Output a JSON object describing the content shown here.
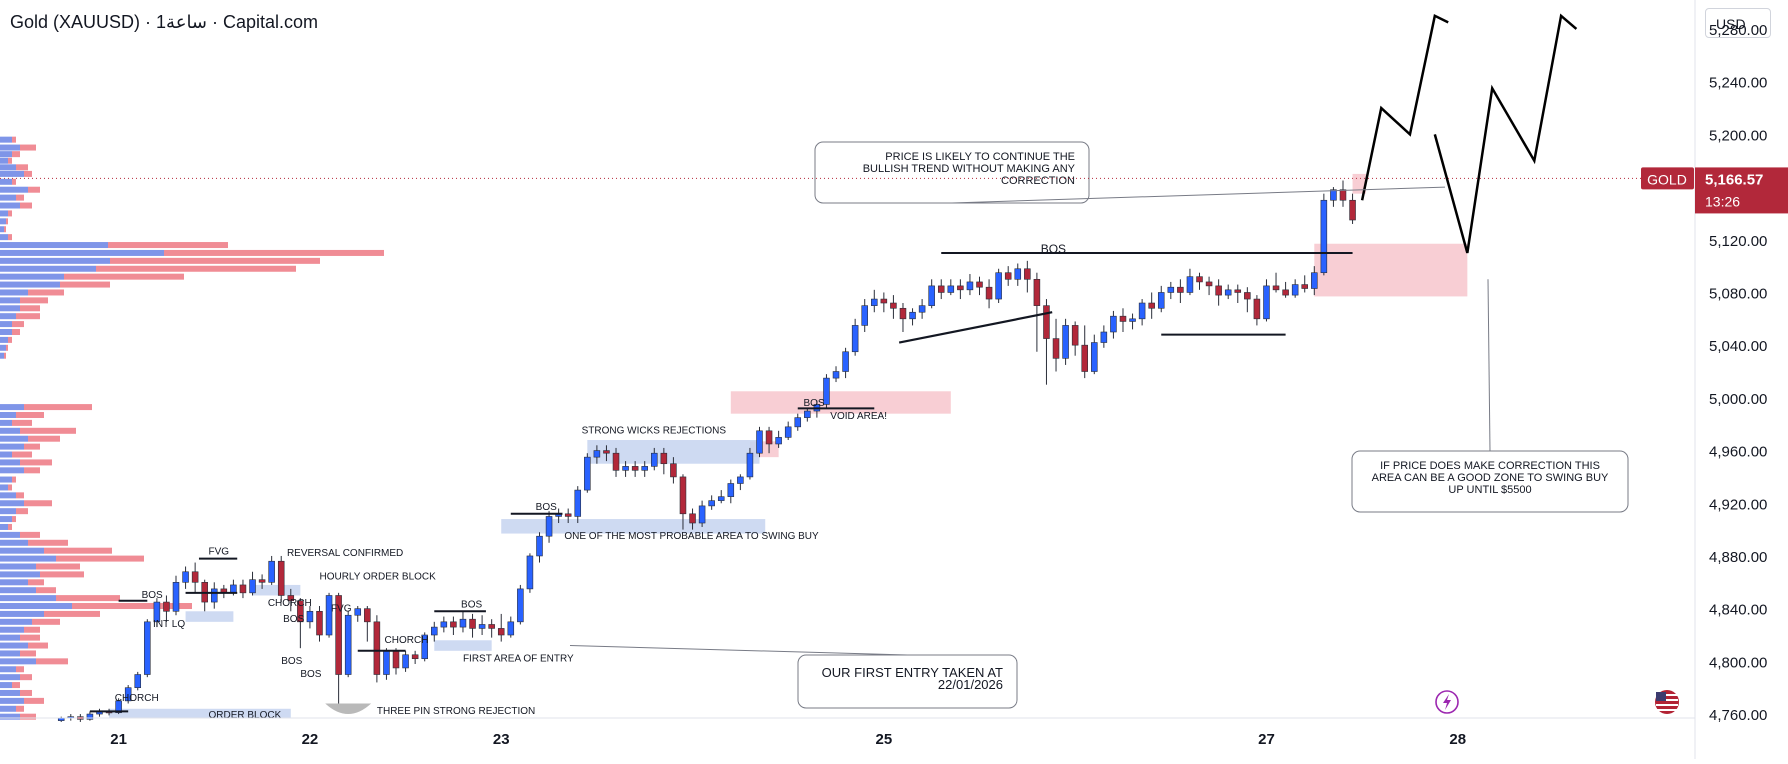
{
  "header": {
    "title": "Gold (XAUUSD) · 1ساعة · Capital.com"
  },
  "currency": "USD",
  "price_tag": {
    "symbol": "GOLD",
    "price": "5,166.57",
    "countdown": "13:26",
    "color": "#b2283a"
  },
  "colors": {
    "up": "#2962ff",
    "down": "#b2283a",
    "volume_up": "#7f95e8",
    "volume_down": "#f08c95",
    "zone_red": "#f7c6cc",
    "zone_blue": "#c5d3f0",
    "zone_grey": "#b9b9b9"
  },
  "icons": [
    "lightning-icon",
    "us-flag-icon"
  ],
  "chart_data": {
    "type": "candlestick",
    "title": "",
    "y_ticks": [
      5280,
      5240,
      5200,
      5120,
      5080,
      5040,
      5000,
      4960,
      4920,
      4880,
      4840,
      4800,
      4760
    ],
    "y_tick_labels": [
      "5,280.00",
      "5,240.00",
      "5,200.00",
      "5,120.00",
      "5,080.00",
      "5,040.00",
      "5,000.00",
      "4,960.00",
      "4,920.00",
      "4,880.00",
      "4,840.00",
      "4,800.00",
      "4,760.00"
    ],
    "ylim": [
      4757,
      5302
    ],
    "x_tick_labels": [
      {
        "label": "21",
        "day": 21
      },
      {
        "label": "22",
        "day": 22
      },
      {
        "label": "23",
        "day": 23
      },
      {
        "label": "25",
        "day": 25
      },
      {
        "label": "27",
        "day": 27
      },
      {
        "label": "28",
        "day": 28
      }
    ],
    "xlim": [
      20.38,
      29.24
    ],
    "last_price": 5166.57,
    "candles": [
      [
        20.7,
        4755,
        4757,
        4754,
        4758
      ],
      [
        20.75,
        4757,
        4758,
        4755,
        4760
      ],
      [
        20.8,
        4758,
        4756,
        4754,
        4760
      ],
      [
        20.85,
        4756,
        4760,
        4755,
        4762
      ],
      [
        20.9,
        4760,
        4762,
        4758,
        4764
      ],
      [
        20.95,
        4762,
        4761,
        4759,
        4764
      ],
      [
        21.0,
        4761,
        4770,
        4760,
        4772
      ],
      [
        21.05,
        4770,
        4780,
        4768,
        4782
      ],
      [
        21.1,
        4780,
        4790,
        4778,
        4792
      ],
      [
        21.15,
        4790,
        4830,
        4788,
        4832
      ],
      [
        21.2,
        4830,
        4845,
        4826,
        4848
      ],
      [
        21.25,
        4845,
        4838,
        4830,
        4850
      ],
      [
        21.3,
        4838,
        4860,
        4835,
        4865
      ],
      [
        21.35,
        4860,
        4868,
        4855,
        4872
      ],
      [
        21.4,
        4868,
        4860,
        4852,
        4875
      ],
      [
        21.45,
        4860,
        4845,
        4838,
        4862
      ],
      [
        21.5,
        4845,
        4855,
        4840,
        4860
      ],
      [
        21.55,
        4855,
        4852,
        4848,
        4858
      ],
      [
        21.6,
        4852,
        4858,
        4850,
        4862
      ],
      [
        21.65,
        4858,
        4852,
        4848,
        4862
      ],
      [
        21.7,
        4852,
        4862,
        4850,
        4868
      ],
      [
        21.75,
        4862,
        4860,
        4855,
        4866
      ],
      [
        21.8,
        4860,
        4876,
        4858,
        4880
      ],
      [
        21.85,
        4876,
        4850,
        4845,
        4880
      ],
      [
        21.9,
        4850,
        4846,
        4838,
        4855
      ],
      [
        21.95,
        4846,
        4830,
        4810,
        4848
      ],
      [
        22.0,
        4830,
        4838,
        4825,
        4842
      ],
      [
        22.05,
        4838,
        4820,
        4815,
        4842
      ],
      [
        22.1,
        4820,
        4850,
        4818,
        4852
      ],
      [
        22.15,
        4850,
        4790,
        4765,
        4852
      ],
      [
        22.2,
        4790,
        4835,
        4788,
        4838
      ],
      [
        22.25,
        4835,
        4840,
        4830,
        4842
      ],
      [
        22.3,
        4840,
        4830,
        4815,
        4842
      ],
      [
        22.35,
        4830,
        4790,
        4784,
        4835
      ],
      [
        22.4,
        4790,
        4808,
        4786,
        4810
      ],
      [
        22.45,
        4808,
        4795,
        4790,
        4810
      ],
      [
        22.5,
        4795,
        4805,
        4792,
        4808
      ],
      [
        22.55,
        4805,
        4802,
        4798,
        4808
      ],
      [
        22.6,
        4802,
        4820,
        4800,
        4822
      ],
      [
        22.65,
        4820,
        4826,
        4815,
        4830
      ],
      [
        22.7,
        4826,
        4830,
        4822,
        4834
      ],
      [
        22.75,
        4830,
        4826,
        4820,
        4834
      ],
      [
        22.8,
        4826,
        4832,
        4822,
        4838
      ],
      [
        22.85,
        4832,
        4825,
        4818,
        4836
      ],
      [
        22.9,
        4825,
        4828,
        4820,
        4835
      ],
      [
        22.95,
        4828,
        4825,
        4818,
        4832
      ],
      [
        23.0,
        4825,
        4820,
        4815,
        4836
      ],
      [
        23.05,
        4820,
        4830,
        4818,
        4834
      ],
      [
        23.1,
        4830,
        4855,
        4828,
        4858
      ],
      [
        23.15,
        4855,
        4880,
        4852,
        4882
      ],
      [
        23.2,
        4880,
        4895,
        4875,
        4898
      ],
      [
        23.25,
        4895,
        4910,
        4890,
        4914
      ],
      [
        23.3,
        4910,
        4912,
        4905,
        4916
      ],
      [
        23.35,
        4912,
        4910,
        4905,
        4916
      ],
      [
        23.4,
        4910,
        4930,
        4905,
        4933
      ],
      [
        23.45,
        4930,
        4955,
        4928,
        4958
      ],
      [
        23.5,
        4955,
        4960,
        4950,
        4964
      ],
      [
        23.55,
        4960,
        4958,
        4952,
        4964
      ],
      [
        23.6,
        4958,
        4945,
        4940,
        4962
      ],
      [
        23.65,
        4945,
        4948,
        4940,
        4952
      ],
      [
        23.7,
        4948,
        4945,
        4940,
        4952
      ],
      [
        23.75,
        4945,
        4948,
        4940,
        4952
      ],
      [
        23.8,
        4948,
        4958,
        4945,
        4962
      ],
      [
        23.85,
        4958,
        4950,
        4942,
        4962
      ],
      [
        23.9,
        4950,
        4940,
        4935,
        4955
      ],
      [
        23.95,
        4940,
        4912,
        4900,
        4942
      ],
      [
        24.0,
        4912,
        4905,
        4900,
        4916
      ],
      [
        24.05,
        4905,
        4918,
        4902,
        4922
      ],
      [
        24.1,
        4918,
        4922,
        4915,
        4926
      ],
      [
        24.15,
        4922,
        4925,
        4920,
        4930
      ],
      [
        24.2,
        4925,
        4935,
        4920,
        4938
      ],
      [
        24.25,
        4935,
        4940,
        4930,
        4942
      ],
      [
        24.3,
        4940,
        4958,
        4938,
        4962
      ],
      [
        24.35,
        4958,
        4975,
        4955,
        4978
      ],
      [
        24.4,
        4975,
        4965,
        4958,
        4978
      ],
      [
        24.45,
        4965,
        4970,
        4962,
        4975
      ],
      [
        24.5,
        4970,
        4978,
        4968,
        4982
      ],
      [
        24.55,
        4978,
        4985,
        4975,
        4988
      ],
      [
        24.6,
        4985,
        4990,
        4982,
        4992
      ],
      [
        24.65,
        4990,
        4995,
        4985,
        4998
      ],
      [
        24.7,
        4995,
        5015,
        4992,
        5018
      ],
      [
        24.75,
        5015,
        5020,
        5012,
        5024
      ],
      [
        24.8,
        5020,
        5035,
        5015,
        5038
      ],
      [
        24.85,
        5035,
        5055,
        5032,
        5060
      ],
      [
        24.9,
        5055,
        5070,
        5050,
        5075
      ],
      [
        24.95,
        5070,
        5075,
        5065,
        5082
      ],
      [
        25.0,
        5075,
        5072,
        5065,
        5080
      ],
      [
        25.05,
        5072,
        5068,
        5060,
        5078
      ],
      [
        25.1,
        5068,
        5060,
        5050,
        5072
      ],
      [
        25.15,
        5060,
        5065,
        5055,
        5068
      ],
      [
        25.2,
        5065,
        5070,
        5060,
        5075
      ],
      [
        25.25,
        5070,
        5085,
        5068,
        5090
      ],
      [
        25.3,
        5085,
        5080,
        5075,
        5090
      ],
      [
        25.35,
        5080,
        5085,
        5078,
        5090
      ],
      [
        25.4,
        5085,
        5082,
        5075,
        5090
      ],
      [
        25.45,
        5082,
        5088,
        5078,
        5094
      ],
      [
        25.5,
        5088,
        5084,
        5078,
        5092
      ],
      [
        25.55,
        5084,
        5075,
        5068,
        5090
      ],
      [
        25.6,
        5075,
        5095,
        5072,
        5098
      ],
      [
        25.65,
        5095,
        5090,
        5085,
        5100
      ],
      [
        25.7,
        5090,
        5098,
        5085,
        5102
      ],
      [
        25.75,
        5098,
        5090,
        5080,
        5104
      ],
      [
        25.8,
        5090,
        5070,
        5035,
        5095
      ],
      [
        25.85,
        5070,
        5045,
        5010,
        5075
      ],
      [
        25.9,
        5045,
        5030,
        5020,
        5060
      ],
      [
        25.95,
        5030,
        5055,
        5025,
        5060
      ],
      [
        26.0,
        5055,
        5040,
        5032,
        5058
      ],
      [
        26.05,
        5040,
        5020,
        5015,
        5055
      ],
      [
        26.1,
        5020,
        5042,
        5018,
        5048
      ],
      [
        26.15,
        5042,
        5050,
        5038,
        5055
      ],
      [
        26.2,
        5050,
        5062,
        5045,
        5066
      ],
      [
        26.25,
        5062,
        5058,
        5050,
        5068
      ],
      [
        26.3,
        5058,
        5060,
        5052,
        5064
      ],
      [
        26.35,
        5060,
        5072,
        5055,
        5075
      ],
      [
        26.4,
        5072,
        5068,
        5060,
        5080
      ],
      [
        26.45,
        5068,
        5080,
        5065,
        5085
      ],
      [
        26.5,
        5080,
        5084,
        5075,
        5088
      ],
      [
        26.55,
        5084,
        5080,
        5072,
        5090
      ],
      [
        26.6,
        5080,
        5092,
        5078,
        5098
      ],
      [
        26.65,
        5092,
        5088,
        5082,
        5095
      ],
      [
        26.7,
        5088,
        5085,
        5078,
        5092
      ],
      [
        26.75,
        5085,
        5078,
        5070,
        5090
      ],
      [
        26.8,
        5078,
        5082,
        5075,
        5086
      ],
      [
        26.85,
        5082,
        5080,
        5072,
        5086
      ],
      [
        26.9,
        5080,
        5075,
        5065,
        5084
      ],
      [
        26.95,
        5075,
        5060,
        5055,
        5078
      ],
      [
        27.0,
        5060,
        5085,
        5058,
        5090
      ],
      [
        27.05,
        5085,
        5082,
        5080,
        5095
      ],
      [
        27.1,
        5082,
        5078,
        5076,
        5088
      ],
      [
        27.15,
        5078,
        5086,
        5076,
        5090
      ],
      [
        27.2,
        5086,
        5083,
        5080,
        5093
      ],
      [
        27.25,
        5083,
        5095,
        5078,
        5100
      ],
      [
        27.3,
        5095,
        5150,
        5093,
        5155
      ],
      [
        27.35,
        5150,
        5158,
        5145,
        5160
      ],
      [
        27.4,
        5158,
        5150,
        5145,
        5165
      ],
      [
        27.45,
        5150,
        5135,
        5132,
        5155
      ]
    ],
    "annotations": [
      {
        "text": "CHORCH"
      },
      {
        "text": "BOS"
      },
      {
        "text": "INT LQ"
      },
      {
        "text": "FVG"
      },
      {
        "text": "REVERSAL CONFIRMED"
      },
      {
        "text": "HOURLY ORDER BLOCK"
      },
      {
        "text": "CHORCH"
      },
      {
        "text": "BOS"
      },
      {
        "text": "BOS"
      },
      {
        "text": "BOS"
      },
      {
        "text": "FVG"
      },
      {
        "text": "CHORCH"
      },
      {
        "text": "ORDER BLOCK"
      },
      {
        "text": "THREE PIN STRONG REJECTION"
      },
      {
        "text": "BOS"
      },
      {
        "text": "FIRST AREA OF ENTRY"
      },
      {
        "text": "BOS"
      },
      {
        "text": "STRONG WICKS REJECTIONS"
      },
      {
        "text": "ONE OF THE MOST PROBABLE AREA TO SWING BUY"
      },
      {
        "text": "BOS"
      },
      {
        "text": "VOID AREA!"
      },
      {
        "text": "BOS"
      }
    ],
    "callouts": [
      {
        "lines": [
          "PRICE IS LIKELY TO CONTINUE THE",
          "BULLISH TREND WITHOUT MAKING ANY",
          "CORRECTION"
        ]
      },
      {
        "lines": [
          "IF PRICE DOES MAKE CORRECTION THIS",
          "AREA CAN BE A GOOD ZONE TO SWING BUY",
          "UP UNTIL $5500"
        ]
      },
      {
        "lines": [
          "OUR FIRST ENTRY TAKEN AT",
          "22/01/2026"
        ]
      }
    ],
    "volume_profile": [
      [
        5196,
        6,
        2
      ],
      [
        5190,
        10,
        8
      ],
      [
        5185,
        6,
        4
      ],
      [
        5180,
        4,
        2
      ],
      [
        5175,
        8,
        6
      ],
      [
        5170,
        12,
        4
      ],
      [
        5164,
        6,
        2
      ],
      [
        5158,
        14,
        6
      ],
      [
        5152,
        8,
        4
      ],
      [
        5146,
        10,
        6
      ],
      [
        5140,
        4,
        2
      ],
      [
        5134,
        3,
        1
      ],
      [
        5128,
        2,
        1
      ],
      [
        5122,
        4,
        2
      ],
      [
        5116,
        54,
        60
      ],
      [
        5110,
        82,
        110
      ],
      [
        5104,
        55,
        105
      ],
      [
        5098,
        48,
        100
      ],
      [
        5092,
        32,
        60
      ],
      [
        5086,
        30,
        25
      ],
      [
        5080,
        14,
        18
      ],
      [
        5074,
        10,
        14
      ],
      [
        5068,
        10,
        10
      ],
      [
        5062,
        8,
        12
      ],
      [
        5056,
        6,
        6
      ],
      [
        5050,
        6,
        4
      ],
      [
        5044,
        4,
        2
      ],
      [
        5038,
        3,
        1
      ],
      [
        5032,
        2,
        1
      ],
      [
        4993,
        12,
        34
      ],
      [
        4987,
        8,
        14
      ],
      [
        4981,
        6,
        10
      ],
      [
        4975,
        10,
        28
      ],
      [
        4969,
        14,
        16
      ],
      [
        4963,
        12,
        8
      ],
      [
        4957,
        6,
        10
      ],
      [
        4951,
        10,
        16
      ],
      [
        4945,
        12,
        8
      ],
      [
        4938,
        6,
        2
      ],
      [
        4932,
        4,
        2
      ],
      [
        4926,
        8,
        4
      ],
      [
        4920,
        12,
        14
      ],
      [
        4914,
        8,
        6
      ],
      [
        4908,
        6,
        2
      ],
      [
        4902,
        4,
        2
      ],
      [
        4896,
        10,
        10
      ],
      [
        4890,
        14,
        20
      ],
      [
        4884,
        22,
        34
      ],
      [
        4878,
        28,
        44
      ],
      [
        4872,
        18,
        22
      ],
      [
        4866,
        20,
        22
      ],
      [
        4860,
        14,
        8
      ],
      [
        4854,
        18,
        10
      ],
      [
        4848,
        28,
        32
      ],
      [
        4842,
        36,
        60
      ],
      [
        4836,
        22,
        28
      ],
      [
        4830,
        16,
        14
      ],
      [
        4824,
        12,
        8
      ],
      [
        4818,
        10,
        10
      ],
      [
        4812,
        14,
        10
      ],
      [
        4806,
        10,
        8
      ],
      [
        4800,
        18,
        16
      ],
      [
        4794,
        8,
        4
      ],
      [
        4788,
        10,
        6
      ],
      [
        4782,
        6,
        4
      ],
      [
        4776,
        10,
        6
      ],
      [
        4770,
        12,
        10
      ],
      [
        4764,
        8,
        4
      ],
      [
        4758,
        10,
        8
      ]
    ]
  }
}
